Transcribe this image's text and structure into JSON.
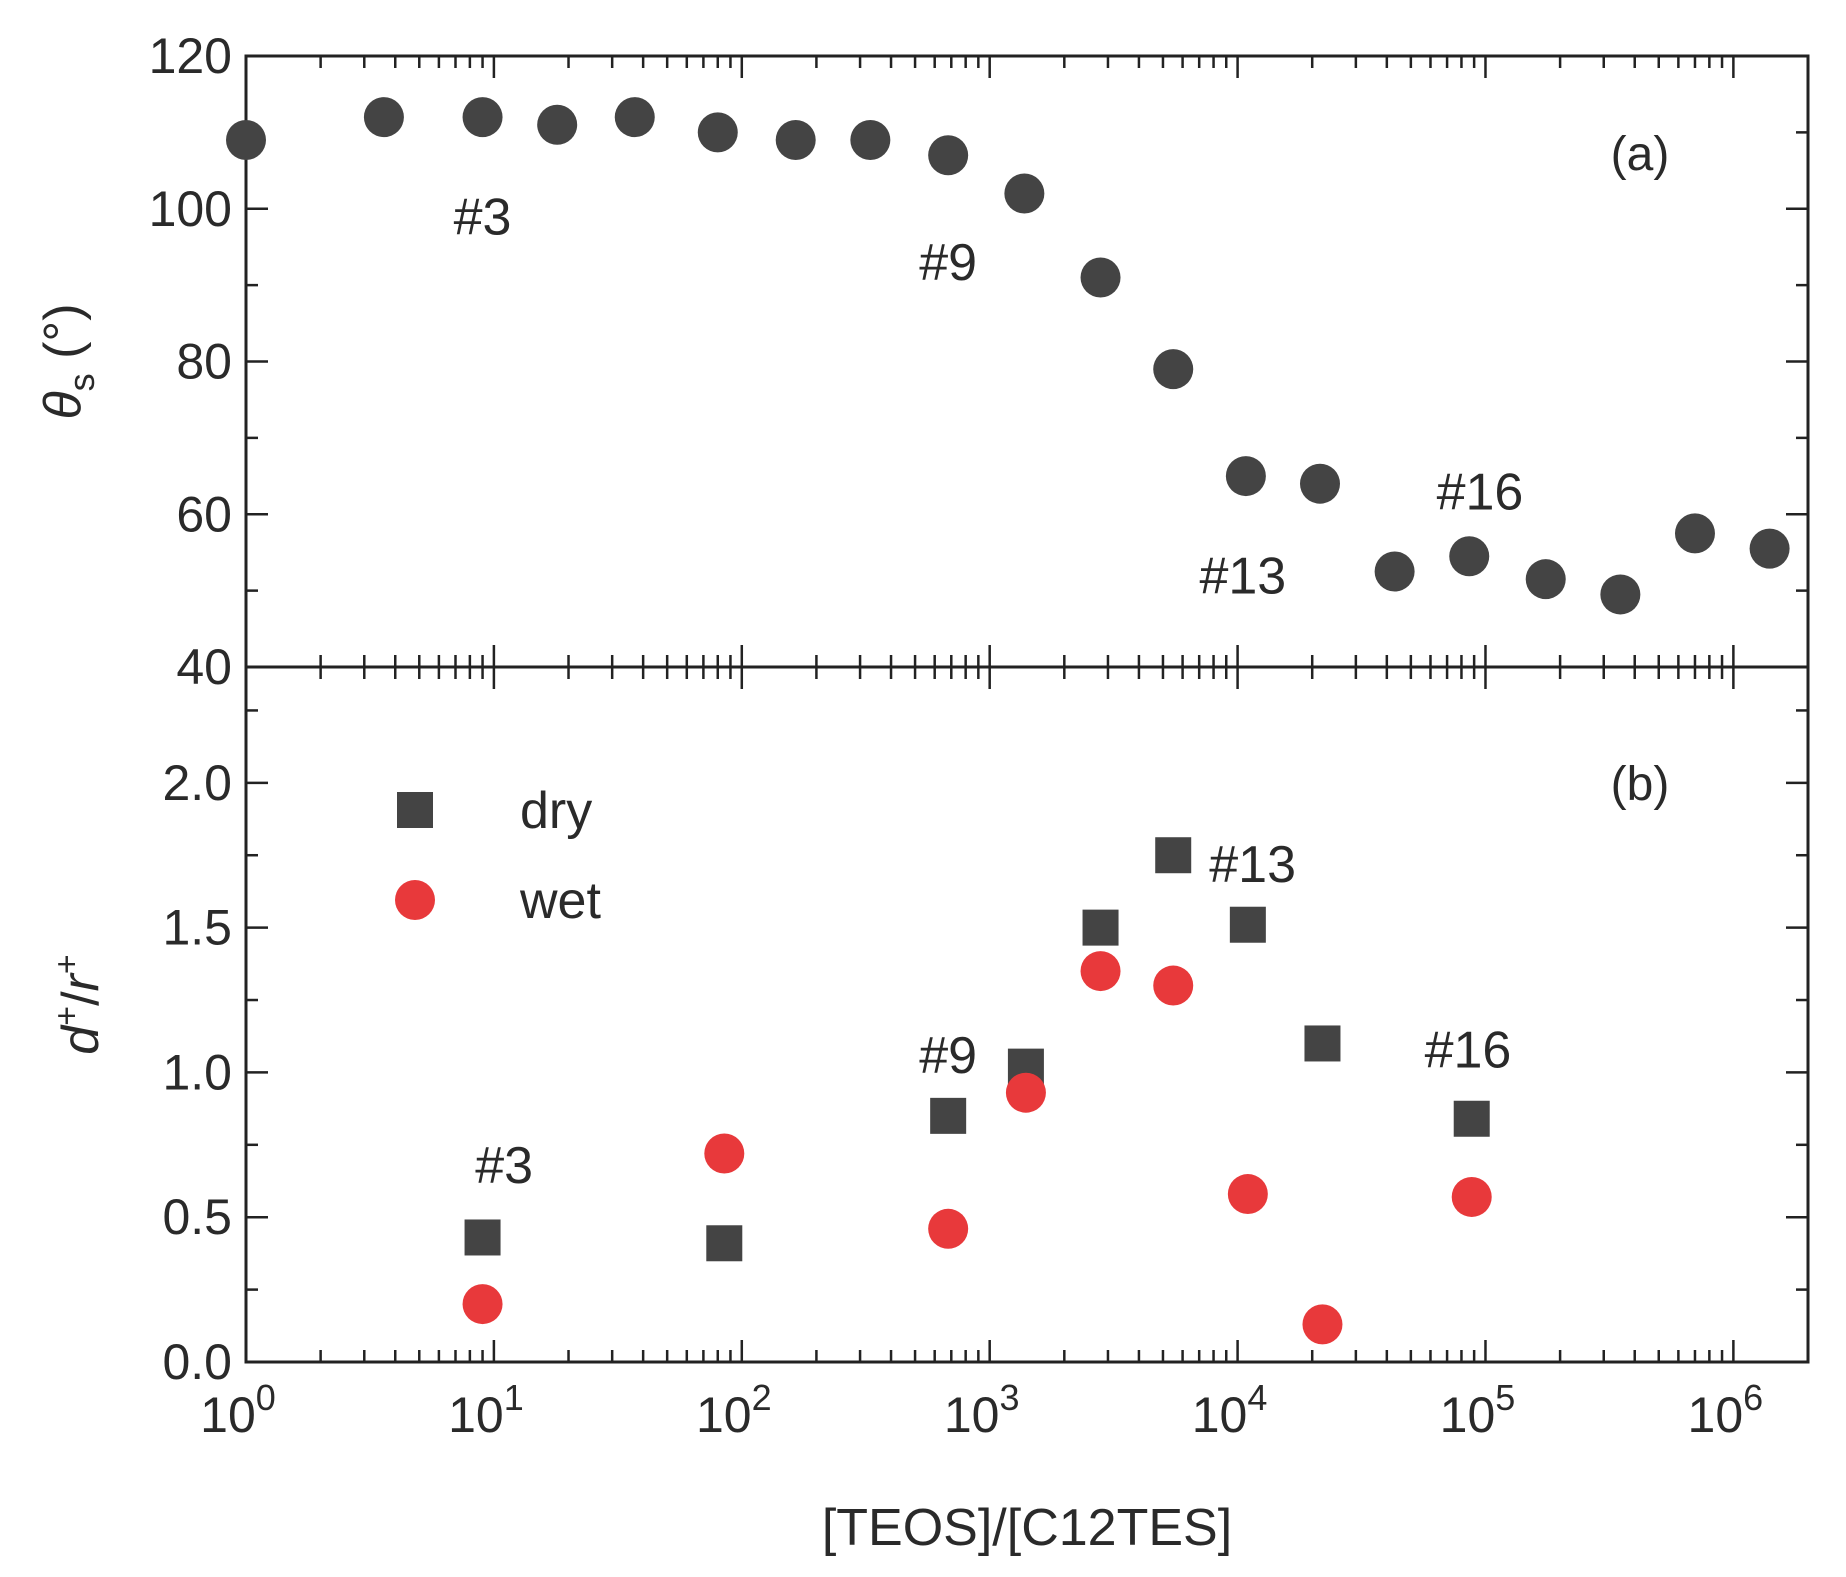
{
  "chart_data": [
    {
      "type": "scatter",
      "panel": "(a)",
      "ylabel_symbol": "θ",
      "ylabel_sub": "s",
      "ylabel_unit": " (°)",
      "xlabel": "[TEOS]/[C12TES]",
      "xscale": "log",
      "xlim": [
        1,
        2000000
      ],
      "ylim": [
        40,
        120
      ],
      "yticks": [
        "40",
        "60",
        "80",
        "100",
        "120"
      ],
      "ytick_values": [
        40,
        60,
        80,
        100,
        120
      ],
      "series": [
        {
          "marker": "circle",
          "color": "#444444",
          "x": [
            1,
            3.6,
            9,
            18,
            37,
            80,
            165,
            330,
            680,
            1380,
            2800,
            5500,
            10800,
            21500,
            43000,
            86000,
            175000,
            350000,
            700000,
            1400000
          ],
          "y": [
            109,
            112,
            112,
            111,
            112,
            110,
            109,
            109,
            107,
            102,
            91,
            79,
            65,
            64,
            52.5,
            54.5,
            51.5,
            49.5,
            57.5,
            55.5
          ]
        }
      ],
      "annotations": [
        {
          "text": "#3",
          "x": 9,
          "y": 99
        },
        {
          "text": "#9",
          "x": 680,
          "y": 93
        },
        {
          "text": "#16",
          "x": 95000,
          "y": 63
        },
        {
          "text": "#13",
          "x": 10500,
          "y": 52
        }
      ]
    },
    {
      "type": "scatter",
      "panel": "(b)",
      "ylabel_d": "d",
      "ylabel_r": "r",
      "ylabel_sup": "+",
      "ylabel_slash": "/",
      "xlabel": "[TEOS]/[C12TES]",
      "xscale": "log",
      "xlim": [
        1,
        2000000
      ],
      "ylim": [
        0,
        2.4
      ],
      "yticks": [
        "0.0",
        "0.5",
        "1.0",
        "1.5",
        "2.0"
      ],
      "ytick_values": [
        0,
        0.5,
        1.0,
        1.5,
        2.0
      ],
      "xticks_base": "10",
      "xticks_exp": [
        "0",
        "1",
        "2",
        "3",
        "4",
        "5",
        "6"
      ],
      "series": [
        {
          "name": "dry",
          "marker": "square",
          "color": "#444444",
          "x": [
            9,
            85,
            680,
            1400,
            2800,
            5500,
            11000,
            22000,
            88000
          ],
          "y": [
            0.43,
            0.41,
            0.85,
            1.02,
            1.5,
            1.75,
            1.51,
            1.1,
            0.84
          ]
        },
        {
          "name": "wet",
          "marker": "circle",
          "color": "#e8393b",
          "x": [
            9,
            85,
            680,
            1400,
            2800,
            5500,
            11000,
            22000,
            88000
          ],
          "y": [
            0.2,
            0.72,
            0.46,
            0.93,
            1.35,
            1.3,
            0.58,
            0.13,
            0.57
          ]
        }
      ],
      "annotations": [
        {
          "text": "#3",
          "x": 11,
          "y": 0.68
        },
        {
          "text": "#9",
          "x": 680,
          "y": 1.06
        },
        {
          "text": "#13",
          "x": 11500,
          "y": 1.72
        },
        {
          "text": "#16",
          "x": 85000,
          "y": 1.08
        }
      ],
      "legend_position": "top-left"
    }
  ]
}
